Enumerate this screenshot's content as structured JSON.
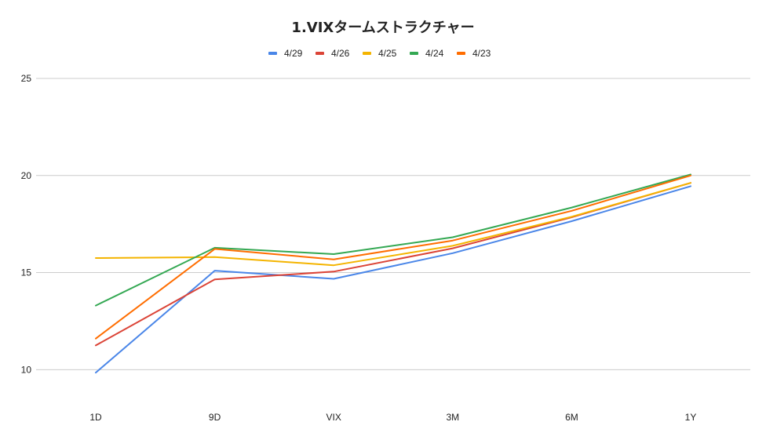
{
  "chart_data": {
    "type": "line",
    "title": "1.VIXタームストラクチャー",
    "xlabel": "",
    "ylabel": "",
    "categories": [
      "1D",
      "9D",
      "VIX",
      "3M",
      "6M",
      "1Y"
    ],
    "ylim": [
      8.6,
      25
    ],
    "yticks": [
      10,
      15,
      20,
      25
    ],
    "grid": true,
    "legend_position": "top",
    "series": [
      {
        "name": "4/29",
        "color": "#4a86e8",
        "values": [
          9.85,
          15.1,
          14.68,
          16.0,
          17.65,
          19.45
        ]
      },
      {
        "name": "4/26",
        "color": "#db4437",
        "values": [
          11.25,
          14.65,
          15.05,
          16.25,
          17.85,
          19.62
        ]
      },
      {
        "name": "4/25",
        "color": "#f4b400",
        "values": [
          15.75,
          15.8,
          15.38,
          16.38,
          17.88,
          19.62
        ]
      },
      {
        "name": "4/24",
        "color": "#34a853",
        "values": [
          13.3,
          16.28,
          15.95,
          16.82,
          18.35,
          20.05
        ]
      },
      {
        "name": "4/23",
        "color": "#ff6d00",
        "values": [
          11.6,
          16.22,
          15.68,
          16.65,
          18.18,
          20.0
        ]
      }
    ]
  }
}
